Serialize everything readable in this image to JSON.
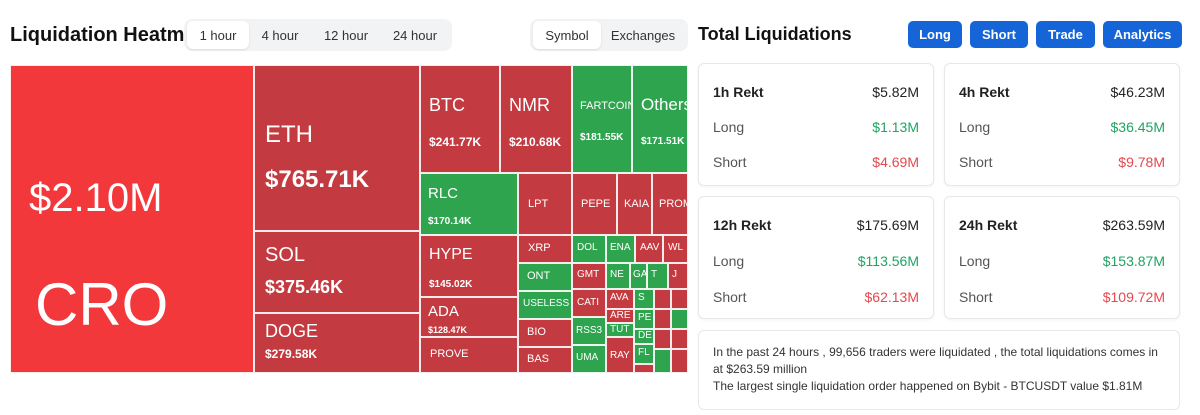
{
  "heatmap": {
    "title": "Liquidation Heatmap",
    "time_tabs": [
      "1 hour",
      "4 hour",
      "12 hour",
      "24 hour"
    ],
    "active_time_tab": "1 hour",
    "view_tabs": [
      "Symbol",
      "Exchanges"
    ],
    "active_view_tab": "Symbol",
    "colors": {
      "red_bright": "#f3383c",
      "red": "#c33a40",
      "green": "#2ea44f"
    },
    "tiles": [
      {
        "symbol": "CRO",
        "value": "$2.10M",
        "color": "red_bright"
      },
      {
        "symbol": "ETH",
        "value": "$765.71K",
        "color": "red"
      },
      {
        "symbol": "SOL",
        "value": "$375.46K",
        "color": "red"
      },
      {
        "symbol": "DOGE",
        "value": "$279.58K",
        "color": "red"
      },
      {
        "symbol": "BTC",
        "value": "$241.77K",
        "color": "red"
      },
      {
        "symbol": "NMR",
        "value": "$210.68K",
        "color": "red"
      },
      {
        "symbol": "FARTCOIN",
        "value": "$181.55K",
        "color": "green"
      },
      {
        "symbol": "Others",
        "value": "$171.51K",
        "color": "green"
      },
      {
        "symbol": "RLC",
        "value": "$170.14K",
        "color": "green"
      },
      {
        "symbol": "HYPE",
        "value": "$145.02K",
        "color": "red"
      },
      {
        "symbol": "ADA",
        "value": "$128.47K",
        "color": "red"
      },
      {
        "symbol": "PROVE",
        "value": "",
        "color": "red"
      },
      {
        "symbol": "LPT",
        "value": "",
        "color": "red"
      },
      {
        "symbol": "PEPE",
        "value": "",
        "color": "red"
      },
      {
        "symbol": "KAIA",
        "value": "",
        "color": "red"
      },
      {
        "symbol": "PROM",
        "value": "",
        "color": "red"
      },
      {
        "symbol": "XRP",
        "value": "",
        "color": "red"
      },
      {
        "symbol": "ONT",
        "value": "",
        "color": "green"
      },
      {
        "symbol": "USELESS",
        "value": "",
        "color": "green"
      },
      {
        "symbol": "BIO",
        "value": "",
        "color": "red"
      },
      {
        "symbol": "BAS",
        "value": "",
        "color": "red"
      },
      {
        "symbol": "DOL",
        "value": "",
        "color": "green"
      },
      {
        "symbol": "ENA",
        "value": "",
        "color": "green"
      },
      {
        "symbol": "AAV",
        "value": "",
        "color": "red"
      },
      {
        "symbol": "WL",
        "value": "",
        "color": "red"
      },
      {
        "symbol": "GMT",
        "value": "",
        "color": "red"
      },
      {
        "symbol": "NE",
        "value": "",
        "color": "green"
      },
      {
        "symbol": "GA",
        "value": "",
        "color": "green"
      },
      {
        "symbol": "T",
        "value": "",
        "color": "green"
      },
      {
        "symbol": "J",
        "value": "",
        "color": "red"
      },
      {
        "symbol": "CATI",
        "value": "",
        "color": "red"
      },
      {
        "symbol": "AVA",
        "value": "",
        "color": "red"
      },
      {
        "symbol": "S",
        "value": "",
        "color": "green"
      },
      {
        "symbol": "ARE",
        "value": "",
        "color": "red"
      },
      {
        "symbol": "RSS3",
        "value": "",
        "color": "green"
      },
      {
        "symbol": "PE",
        "value": "",
        "color": "green"
      },
      {
        "symbol": "TUT",
        "value": "",
        "color": "green"
      },
      {
        "symbol": "DE",
        "value": "",
        "color": "green"
      },
      {
        "symbol": "UMA",
        "value": "",
        "color": "green"
      },
      {
        "symbol": "RAY",
        "value": "",
        "color": "red"
      },
      {
        "symbol": "FL",
        "value": "",
        "color": "green"
      },
      {
        "symbol": "",
        "value": "",
        "color": "red"
      },
      {
        "symbol": "",
        "value": "",
        "color": "red"
      },
      {
        "symbol": "",
        "value": "",
        "color": "red"
      },
      {
        "symbol": "",
        "value": "",
        "color": "green"
      },
      {
        "symbol": "",
        "value": "",
        "color": "red"
      },
      {
        "symbol": "",
        "value": "",
        "color": "red"
      },
      {
        "symbol": "",
        "value": "",
        "color": "green"
      },
      {
        "symbol": "",
        "value": "",
        "color": "red"
      },
      {
        "symbol": "",
        "value": "",
        "color": "red"
      }
    ]
  },
  "liquidations": {
    "title": "Total Liquidations",
    "buttons": [
      "Long",
      "Short",
      "Trade",
      "Analytics"
    ],
    "cards": [
      {
        "title": "1h Rekt",
        "total": "$5.82M",
        "long_label": "Long",
        "long": "$1.13M",
        "short_label": "Short",
        "short": "$4.69M"
      },
      {
        "title": "4h Rekt",
        "total": "$46.23M",
        "long_label": "Long",
        "long": "$36.45M",
        "short_label": "Short",
        "short": "$9.78M"
      },
      {
        "title": "12h Rekt",
        "total": "$175.69M",
        "long_label": "Long",
        "long": "$113.56M",
        "short_label": "Short",
        "short": "$62.13M"
      },
      {
        "title": "24h Rekt",
        "total": "$263.59M",
        "long_label": "Long",
        "long": "$153.87M",
        "short_label": "Short",
        "short": "$109.72M"
      }
    ],
    "summary_line1": "In the past 24 hours , 99,656 traders were liquidated , the total liquidations comes in at $263.59 million",
    "summary_line2": "The largest single liquidation order happened on Bybit - BTCUSDT value $1.81M"
  }
}
